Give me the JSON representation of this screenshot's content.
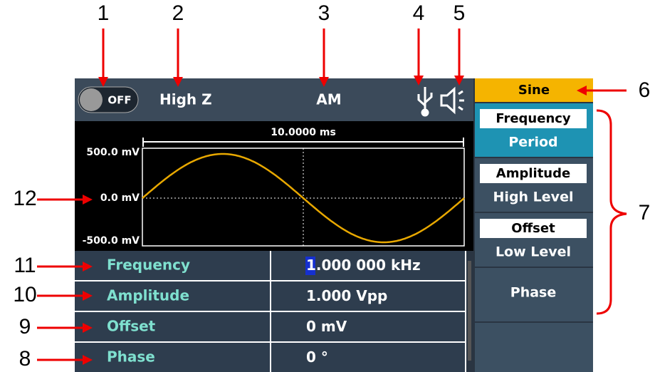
{
  "callouts": [
    "1",
    "2",
    "3",
    "4",
    "5",
    "6",
    "7",
    "8",
    "9",
    "10",
    "11",
    "12"
  ],
  "status_bar": {
    "toggle": "OFF",
    "load": "High Z",
    "mode": "AM"
  },
  "waveform": {
    "time_span": "10.0000 ms",
    "top_label": "500.0 mV",
    "mid_label": "0.0 mV",
    "bottom_label": "-500.0 mV"
  },
  "parameters": [
    {
      "name": "Frequency",
      "cursor": "1",
      "value": ".000 000 kHz"
    },
    {
      "name": "Amplitude",
      "value": "1.000 Vpp"
    },
    {
      "name": "Offset",
      "value": "0 mV"
    },
    {
      "name": "Phase",
      "value": "0 °"
    }
  ],
  "menu": {
    "title": "Sine",
    "items": [
      {
        "selected": "Frequency",
        "alternate": "Period"
      },
      {
        "selected": "Amplitude",
        "alternate": "High Level"
      },
      {
        "selected": "Offset",
        "alternate": "Low Level"
      },
      {
        "label": "Phase"
      }
    ]
  }
}
